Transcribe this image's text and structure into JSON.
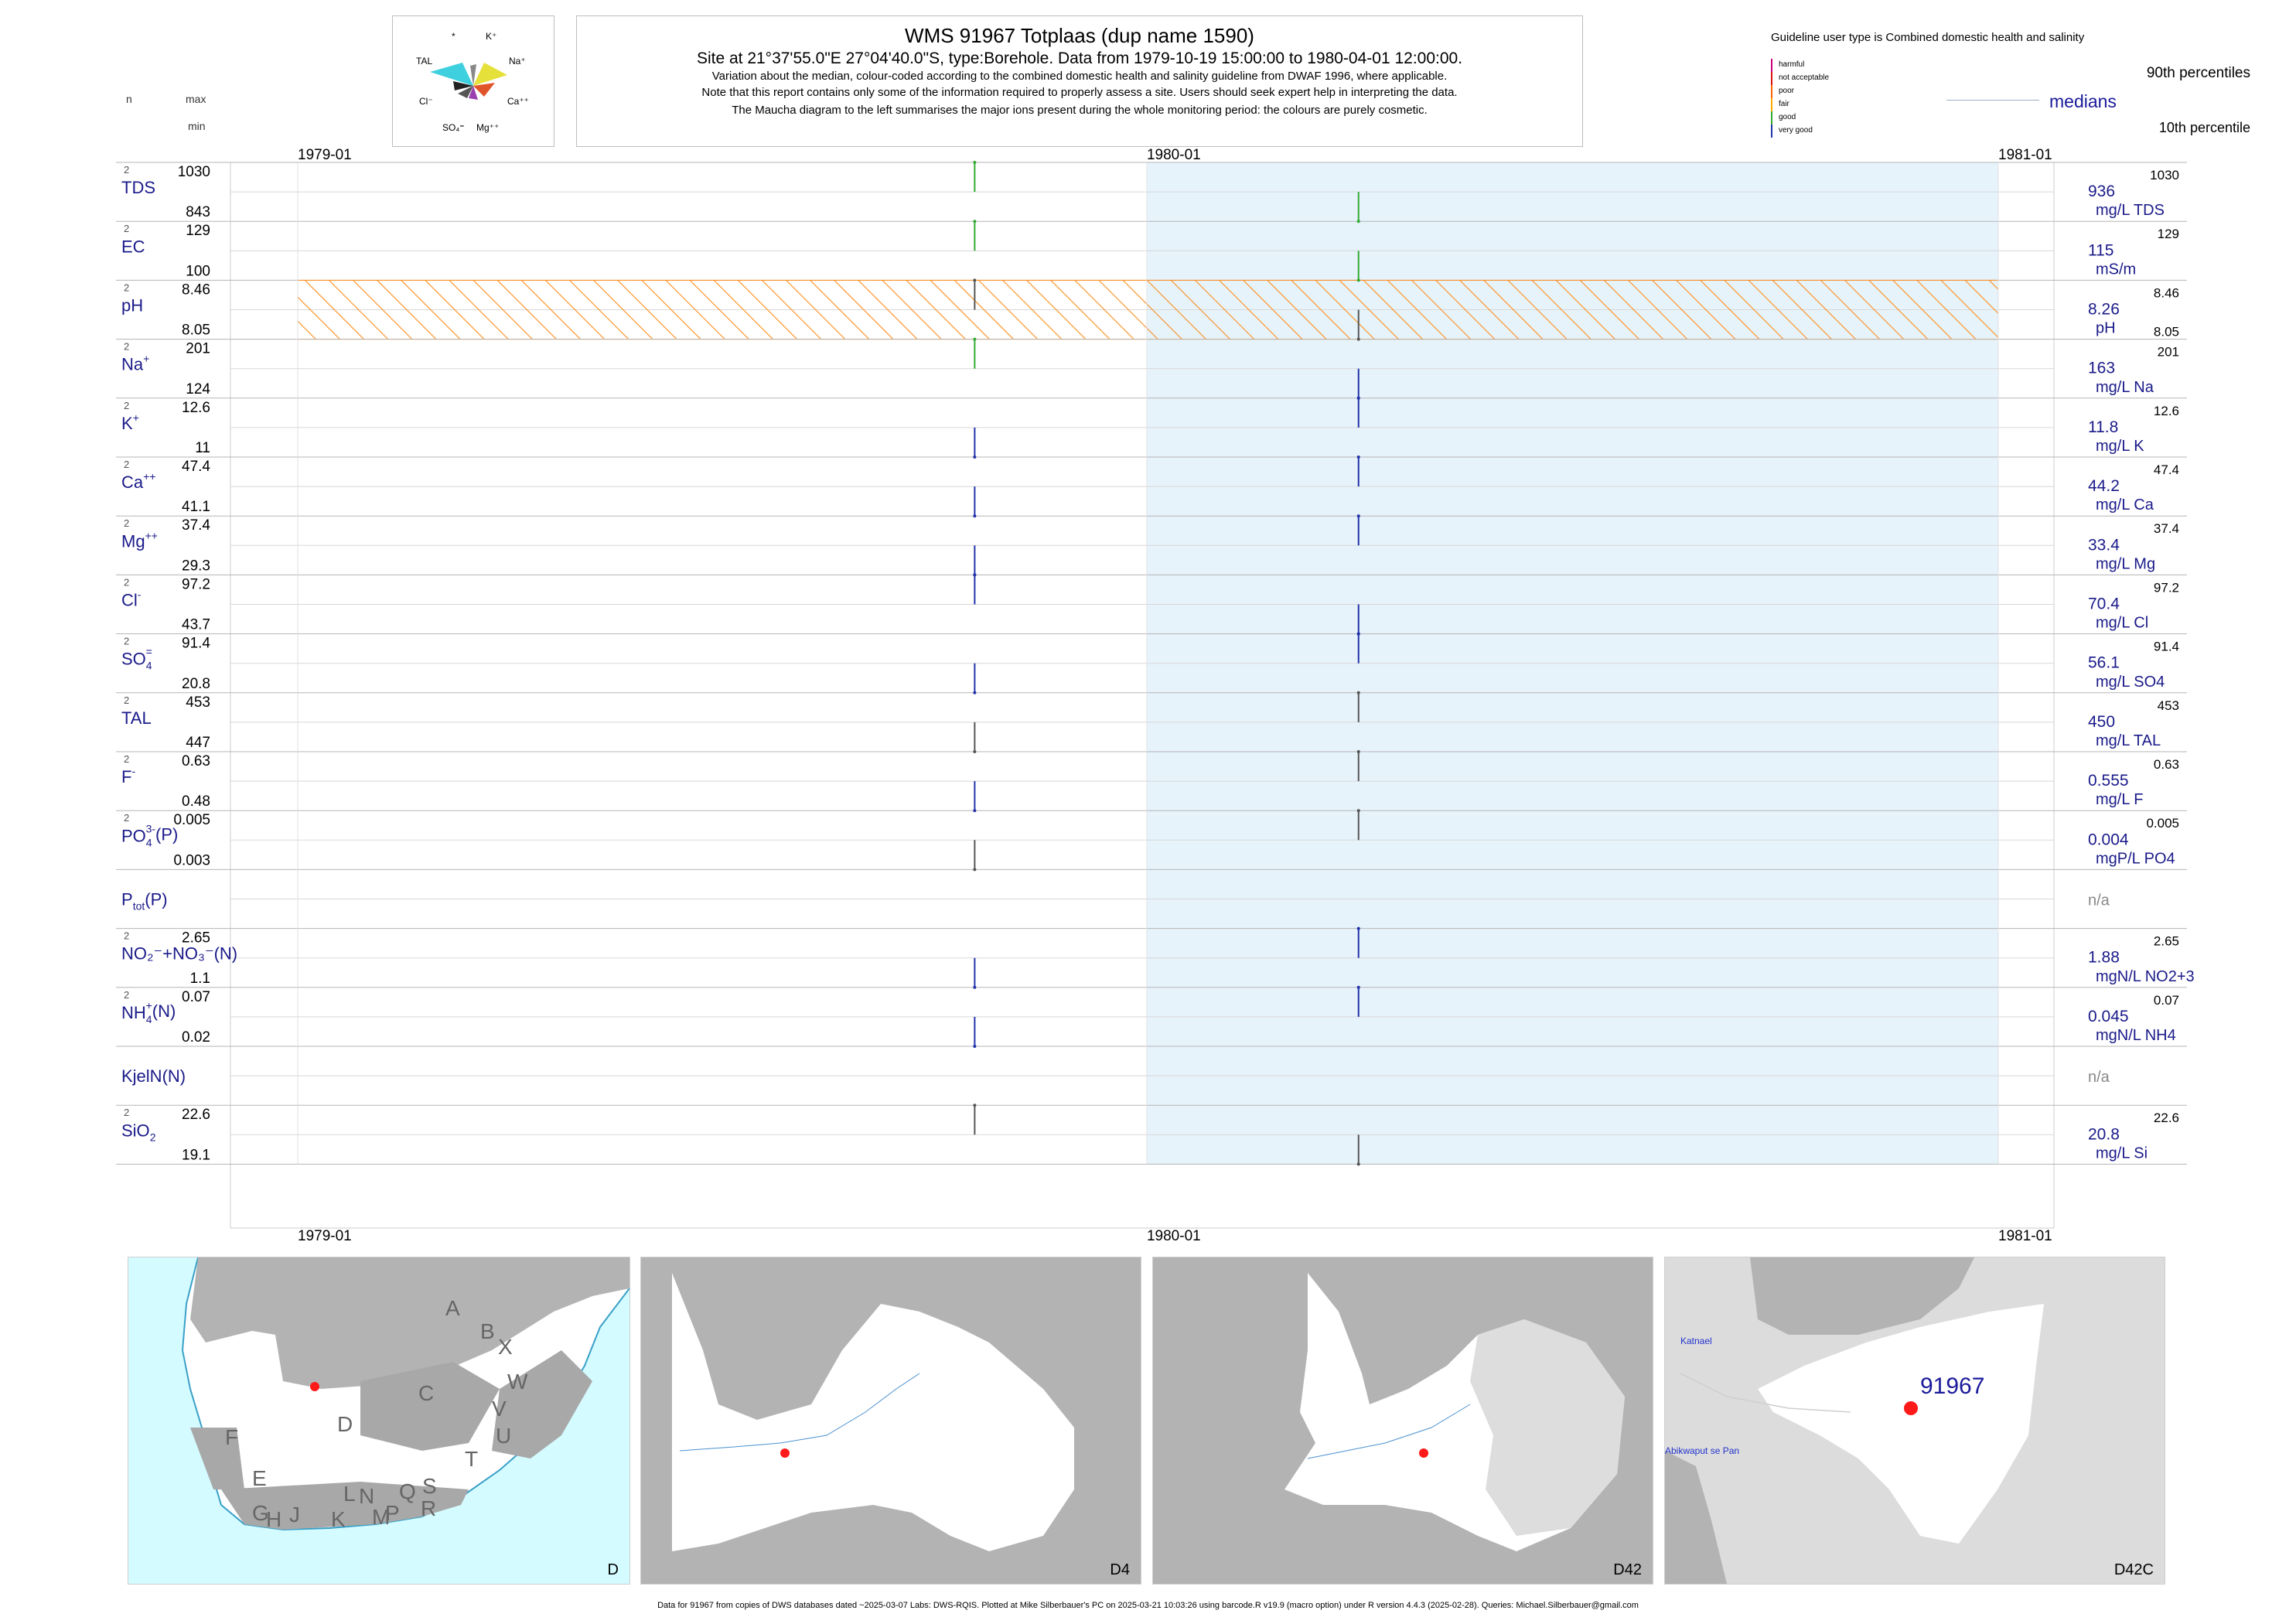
{
  "header": {
    "title": "WMS 91967  Totplaas (dup name 1590)",
    "subtitle": "Site at 21°37'55.0\"E 27°04'40.0\"S, type:Borehole.  Data from 1979-10-19 15:00:00 to 1980-04-01 12:00:00.",
    "note1": "Variation about the median,  colour-coded according to the combined domestic health and salinity guideline from DWAF 1996, where applicable.",
    "note2": "Note that this report contains only some of the information required to properly assess a site. Users should seek expert help in interpreting the data.",
    "note3": "The Maucha diagram to the left summarises the major ions present during the whole monitoring period: the colours are purely cosmetic."
  },
  "maucha": {
    "labels": {
      "top1": "*",
      "top2": "K⁺",
      "tal": "TAL",
      "na": "Na⁺",
      "cl": "Cl⁻",
      "ca": "Ca⁺⁺",
      "so4": "SO₄⁼",
      "mg": "Mg⁺⁺"
    },
    "colors": {
      "tal": "#3fd0e0",
      "na": "#e6e03a",
      "ca": "#e0542a",
      "mg": "#9a3fb0",
      "so4": "#555555",
      "cl": "#222222",
      "k": "#888888"
    }
  },
  "legend": {
    "guideline_title": "Guideline user type is Combined domestic health and salinity",
    "classes": [
      {
        "label": "harmful",
        "color": "#cc0077"
      },
      {
        "label": "not acceptable",
        "color": "#dd1111"
      },
      {
        "label": "poor",
        "color": "#ff6600"
      },
      {
        "label": "fair",
        "color": "#ffaa00"
      },
      {
        "label": "good",
        "color": "#33aa33"
      },
      {
        "label": "very good",
        "color": "#2233aa"
      }
    ],
    "p90": "90th percentiles",
    "medians": "medians",
    "p10": "10th percentile"
  },
  "left_header": {
    "n": "n",
    "max": "max",
    "min": "min"
  },
  "timeline": {
    "start_label": "1979-01",
    "mid_label": "1980-01",
    "end_label": "1981-01"
  },
  "shade_color": "#e6f3fb",
  "ph_band_color": "#ff8c1a",
  "chart_data": {
    "type": "table",
    "x_range": [
      "1979-01-01",
      "1981-01-01"
    ],
    "shaded_period": [
      "1980-01-01",
      "1981-01-01"
    ],
    "sample_dates": [
      "1979-10-19",
      "1980-04-01"
    ],
    "ph_guideline_band": [
      8.05,
      8.46
    ],
    "rows": [
      {
        "name": "TDS",
        "sup": "",
        "sub": "",
        "n": "2",
        "max": "1030",
        "min": "843",
        "median": "936",
        "unit": "mg/L TDS",
        "p90": "1030",
        "p10": "",
        "values": [
          1030,
          843
        ],
        "colors": [
          "#33aa33",
          "#33aa33"
        ]
      },
      {
        "name": "EC",
        "sup": "",
        "sub": "",
        "n": "2",
        "max": "129",
        "min": "100",
        "median": "115",
        "unit": "mS/m",
        "p90": "129",
        "p10": "",
        "values": [
          129,
          100
        ],
        "colors": [
          "#33aa33",
          "#33aa33"
        ]
      },
      {
        "name": "pH",
        "sup": "",
        "sub": "",
        "n": "2",
        "max": "8.46",
        "min": "8.05",
        "median": "8.26",
        "unit": "pH",
        "p90": "8.46",
        "p10": "8.05",
        "values": [
          8.46,
          8.05
        ],
        "colors": [
          "#555555",
          "#555555"
        ]
      },
      {
        "name": "Na",
        "sup": "+",
        "sub": "",
        "n": "2",
        "max": "201",
        "min": "124",
        "median": "163",
        "unit": "mg/L Na",
        "p90": "201",
        "p10": "",
        "values": [
          201,
          124
        ],
        "colors": [
          "#33aa33",
          "#2233aa"
        ]
      },
      {
        "name": "K",
        "sup": "+",
        "sub": "",
        "n": "2",
        "max": "12.6",
        "min": "11",
        "median": "11.8",
        "unit": "mg/L K",
        "p90": "12.6",
        "p10": "",
        "values": [
          11,
          12.6
        ],
        "colors": [
          "#2233aa",
          "#2233aa"
        ]
      },
      {
        "name": "Ca",
        "sup": "++",
        "sub": "",
        "n": "2",
        "max": "47.4",
        "min": "41.1",
        "median": "44.2",
        "unit": "mg/L Ca",
        "p90": "47.4",
        "p10": "",
        "values": [
          41.1,
          47.4
        ],
        "colors": [
          "#2233aa",
          "#2233aa"
        ]
      },
      {
        "name": "Mg",
        "sup": "++",
        "sub": "",
        "n": "2",
        "max": "37.4",
        "min": "29.3",
        "median": "33.4",
        "unit": "mg/L Mg",
        "p90": "37.4",
        "p10": "",
        "values": [
          29.3,
          37.4
        ],
        "colors": [
          "#2233aa",
          "#2233aa"
        ]
      },
      {
        "name": "Cl",
        "sup": "-",
        "sub": "",
        "n": "2",
        "max": "97.2",
        "min": "43.7",
        "median": "70.4",
        "unit": "mg/L Cl",
        "p90": "97.2",
        "p10": "",
        "values": [
          97.2,
          43.7
        ],
        "colors": [
          "#2233aa",
          "#2233aa"
        ]
      },
      {
        "name": "SO",
        "sup": "=",
        "sub": "4",
        "n": "2",
        "max": "91.4",
        "min": "20.8",
        "median": "56.1",
        "unit": "mg/L SO4",
        "p90": "91.4",
        "p10": "",
        "values": [
          20.8,
          91.4
        ],
        "colors": [
          "#2233aa",
          "#2233aa"
        ]
      },
      {
        "name": "TAL",
        "sup": "",
        "sub": "",
        "n": "2",
        "max": "453",
        "min": "447",
        "median": "450",
        "unit": "mg/L TAL",
        "p90": "453",
        "p10": "",
        "values": [
          447,
          453
        ],
        "colors": [
          "#555555",
          "#555555"
        ]
      },
      {
        "name": "F",
        "sup": "-",
        "sub": "",
        "n": "2",
        "max": "0.63",
        "min": "0.48",
        "median": "0.555",
        "unit": "mg/L F",
        "p90": "0.63",
        "p10": "",
        "values": [
          0.48,
          0.63
        ],
        "colors": [
          "#2233aa",
          "#555555"
        ]
      },
      {
        "name": "PO",
        "sup": "3-",
        "sub": "4",
        "extra": "(P)",
        "n": "2",
        "max": "0.005",
        "min": "0.003",
        "median": "0.004",
        "unit": "mgP/L PO4",
        "p90": "0.005",
        "p10": "",
        "values": [
          0.003,
          0.005
        ],
        "colors": [
          "#555555",
          "#555555"
        ]
      },
      {
        "name": "P",
        "sup": "",
        "sub": "tot",
        "extra": "(P)",
        "n": "",
        "max": "",
        "min": "",
        "median": "n/a",
        "unit": "",
        "p90": "",
        "p10": "",
        "values": [],
        "colors": []
      },
      {
        "name": "NO₂⁻+NO₃⁻",
        "sup": "",
        "sub": "",
        "extra": "(N)",
        "n": "2",
        "max": "2.65",
        "min": "1.1",
        "median": "1.88",
        "unit": "mgN/L NO2+3",
        "p90": "2.65",
        "p10": "",
        "values": [
          1.1,
          2.65
        ],
        "colors": [
          "#2233aa",
          "#2233aa"
        ]
      },
      {
        "name": "NH",
        "sup": "+",
        "sub": "4",
        "extra": "(N)",
        "n": "2",
        "max": "0.07",
        "min": "0.02",
        "median": "0.045",
        "unit": "mgN/L NH4",
        "p90": "0.07",
        "p10": "",
        "values": [
          0.02,
          0.07
        ],
        "colors": [
          "#2233aa",
          "#2233aa"
        ]
      },
      {
        "name": "KjelN(N)",
        "sup": "",
        "sub": "",
        "n": "",
        "max": "",
        "min": "",
        "median": "n/a",
        "unit": "",
        "p90": "",
        "p10": "",
        "values": [],
        "colors": []
      },
      {
        "name": "SiO",
        "sup": "",
        "sub": "2",
        "n": "2",
        "max": "22.6",
        "min": "19.1",
        "median": "20.8",
        "unit": "mg/L Si",
        "p90": "22.6",
        "p10": "",
        "values": [
          22.6,
          19.1
        ],
        "colors": [
          "#555555",
          "#555555"
        ]
      }
    ]
  },
  "maps": {
    "panels": [
      {
        "label": "D"
      },
      {
        "label": "D4"
      },
      {
        "label": "D42"
      },
      {
        "label": "D42C"
      }
    ],
    "region_letters": [
      "A",
      "B",
      "X",
      "W",
      "C",
      "V",
      "U",
      "T",
      "D",
      "F",
      "E",
      "G",
      "H",
      "J",
      "K",
      "L",
      "M",
      "N",
      "P",
      "Q",
      "R",
      "S"
    ],
    "site_label": "91967",
    "place1": "Katnael",
    "place2": "Abikwaput se Pan",
    "marker_color": "#ff1a1a",
    "ocean_color": "#d4fbff",
    "land_color": "#b3b3b3"
  },
  "footer": "Data for 91967 from copies of DWS databases dated ~2025-03-07 Labs: DWS-RQIS. Plotted at Mike Silberbauer's PC on 2025-03-21 10:03:26 using barcode.R v19.9 (macro option) under R version 4.4.3 (2025-02-28). Queries: Michael.Silberbauer@gmail.com"
}
